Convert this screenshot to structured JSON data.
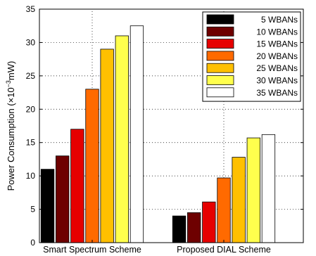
{
  "chart_data": {
    "type": "bar",
    "ylabel_main": "Power Consumption (×10",
    "ylabel_sup": "−3",
    "ylabel_tail": "mW)",
    "ylim": [
      0,
      35
    ],
    "yticks": [
      "0",
      "5",
      "10",
      "15",
      "20",
      "25",
      "30",
      "35"
    ],
    "grid": true,
    "legend_position": "top-right",
    "categories": [
      "Smart Spectrum Scheme",
      "Proposed DIAL Scheme"
    ],
    "series": [
      {
        "name": "5  WBANs",
        "color": "#000000",
        "values": [
          11.0,
          4.0
        ]
      },
      {
        "name": "10  WBANs",
        "color": "#6e0000",
        "values": [
          13.0,
          4.5
        ]
      },
      {
        "name": "15  WBANs",
        "color": "#e60000",
        "values": [
          17.0,
          6.1
        ]
      },
      {
        "name": "20  WBANs",
        "color": "#ff6a00",
        "values": [
          23.0,
          9.7
        ]
      },
      {
        "name": "25  WBANs",
        "color": "#ffc000",
        "values": [
          29.0,
          12.8
        ]
      },
      {
        "name": "30  WBANs",
        "color": "#ffff4d",
        "values": [
          31.0,
          15.7
        ]
      },
      {
        "name": "35  WBANs",
        "color": "#ffffff",
        "values": [
          32.5,
          16.2
        ]
      }
    ]
  }
}
